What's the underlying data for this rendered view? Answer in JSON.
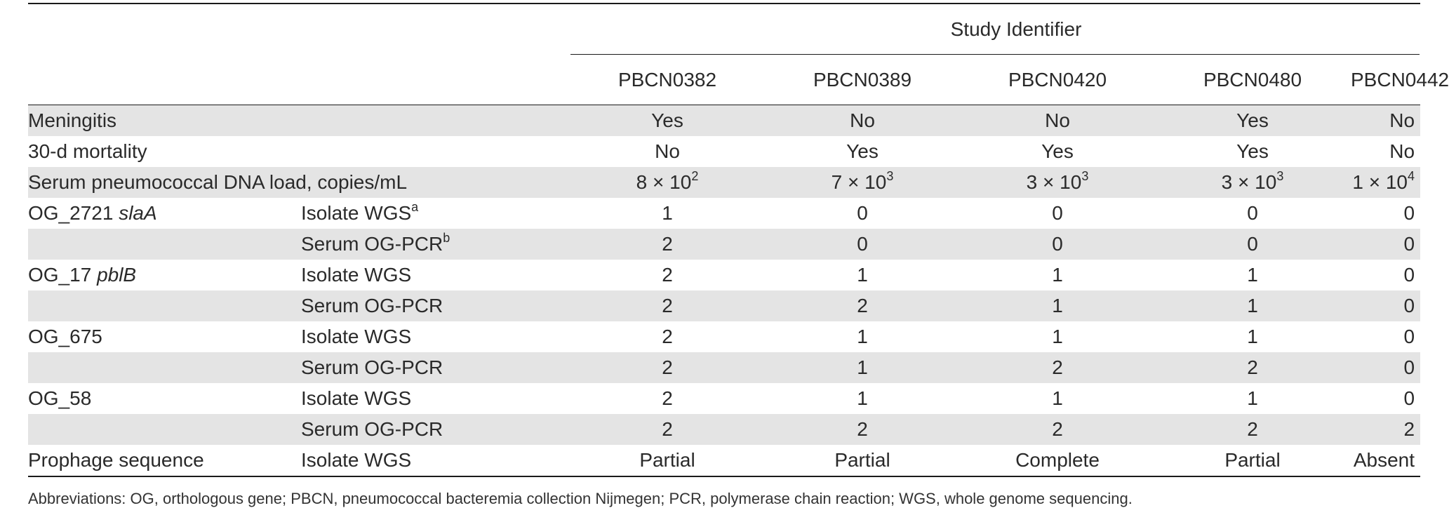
{
  "header": {
    "group_label": "Study Identifier",
    "ids": [
      "PBCN0382",
      "PBCN0389",
      "PBCN0420",
      "PBCN0480",
      "PBCN0442"
    ]
  },
  "rows": [
    {
      "label": "Meningitis",
      "gene": "",
      "method": "",
      "method_sup": "",
      "values": [
        "Yes",
        "No",
        "No",
        "Yes",
        "No"
      ],
      "shaded": true
    },
    {
      "label": "30-d mortality",
      "gene": "",
      "method": "",
      "method_sup": "",
      "values": [
        "No",
        "Yes",
        "Yes",
        "Yes",
        "No"
      ],
      "shaded": false
    },
    {
      "label": "Serum pneumococcal DNA load, copies/mL",
      "gene": "",
      "method": "",
      "method_sup": "",
      "values": [
        "8 × 10",
        "7 × 10",
        "3 × 10",
        "3 × 10",
        "1 × 10"
      ],
      "exps": [
        "2",
        "3",
        "3",
        "3",
        "4"
      ],
      "shaded": true
    },
    {
      "label": "OG_2721",
      "gene": "slaA",
      "method": "Isolate WGS",
      "method_sup": "a",
      "values": [
        "1",
        "0",
        "0",
        "0",
        "0"
      ],
      "shaded": false
    },
    {
      "label": "",
      "gene": "",
      "method": "Serum OG-PCR",
      "method_sup": "b",
      "values": [
        "2",
        "0",
        "0",
        "0",
        "0"
      ],
      "shaded": true
    },
    {
      "label": "OG_17",
      "gene": "pblB",
      "method": "Isolate WGS",
      "method_sup": "",
      "values": [
        "2",
        "1",
        "1",
        "1",
        "0"
      ],
      "shaded": false
    },
    {
      "label": "",
      "gene": "",
      "method": "Serum OG-PCR",
      "method_sup": "",
      "values": [
        "2",
        "2",
        "1",
        "1",
        "0"
      ],
      "shaded": true
    },
    {
      "label": "OG_675",
      "gene": "",
      "method": "Isolate WGS",
      "method_sup": "",
      "values": [
        "2",
        "1",
        "1",
        "1",
        "0"
      ],
      "shaded": false
    },
    {
      "label": "",
      "gene": "",
      "method": "Serum OG-PCR",
      "method_sup": "",
      "values": [
        "2",
        "1",
        "2",
        "2",
        "0"
      ],
      "shaded": true
    },
    {
      "label": "OG_58",
      "gene": "",
      "method": "Isolate WGS",
      "method_sup": "",
      "values": [
        "2",
        "1",
        "1",
        "1",
        "0"
      ],
      "shaded": false
    },
    {
      "label": "",
      "gene": "",
      "method": "Serum OG-PCR",
      "method_sup": "",
      "values": [
        "2",
        "2",
        "2",
        "2",
        "2"
      ],
      "shaded": true
    },
    {
      "label": "Prophage sequence",
      "gene": "",
      "method": "Isolate WGS",
      "method_sup": "",
      "values": [
        "Partial",
        "Partial",
        "Complete",
        "Partial",
        "Absent"
      ],
      "shaded": false
    }
  ],
  "footnote": "Abbreviations: OG, orthologous gene; PBCN, pneumococcal bacteremia collection Nijmegen; PCR, polymerase chain reaction; WGS, whole genome sequencing."
}
